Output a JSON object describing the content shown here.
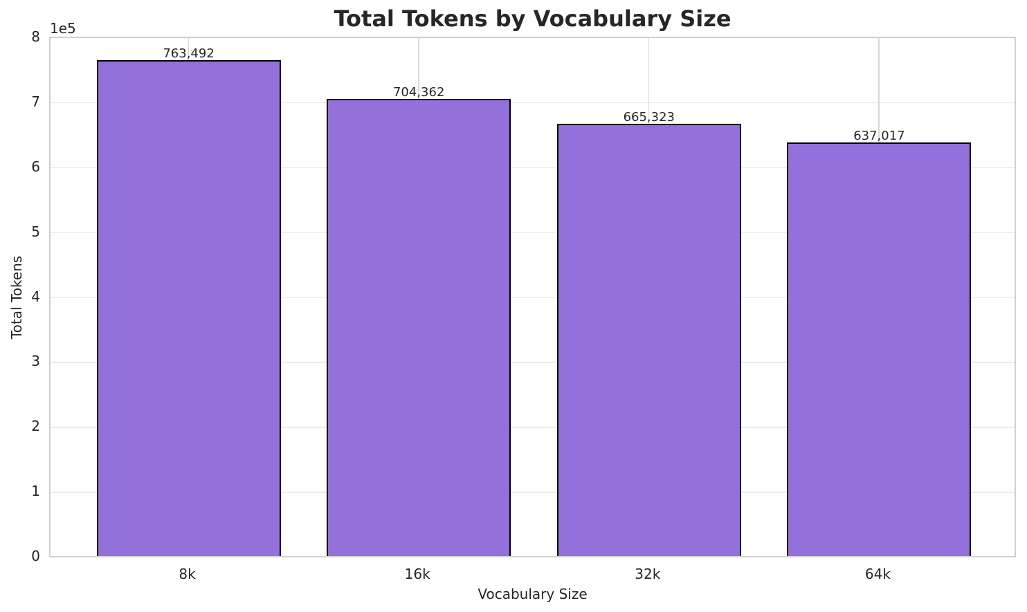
{
  "chart_data": {
    "type": "bar",
    "title": "Total Tokens by Vocabulary Size",
    "xlabel": "Vocabulary Size",
    "ylabel": "Total Tokens",
    "ylim": [
      0,
      800000
    ],
    "y_offset_label": "1e5",
    "yticks": [
      "0",
      "1",
      "2",
      "3",
      "4",
      "5",
      "6",
      "7",
      "8"
    ],
    "categories": [
      "8k",
      "16k",
      "32k",
      "64k"
    ],
    "values": [
      763492,
      704362,
      665323,
      637017
    ],
    "value_labels": [
      "763,492",
      "704,362",
      "665,323",
      "637,017"
    ],
    "bar_color": "#9370db",
    "bar_edge_color": "#000000",
    "grid": true,
    "legend": null
  }
}
